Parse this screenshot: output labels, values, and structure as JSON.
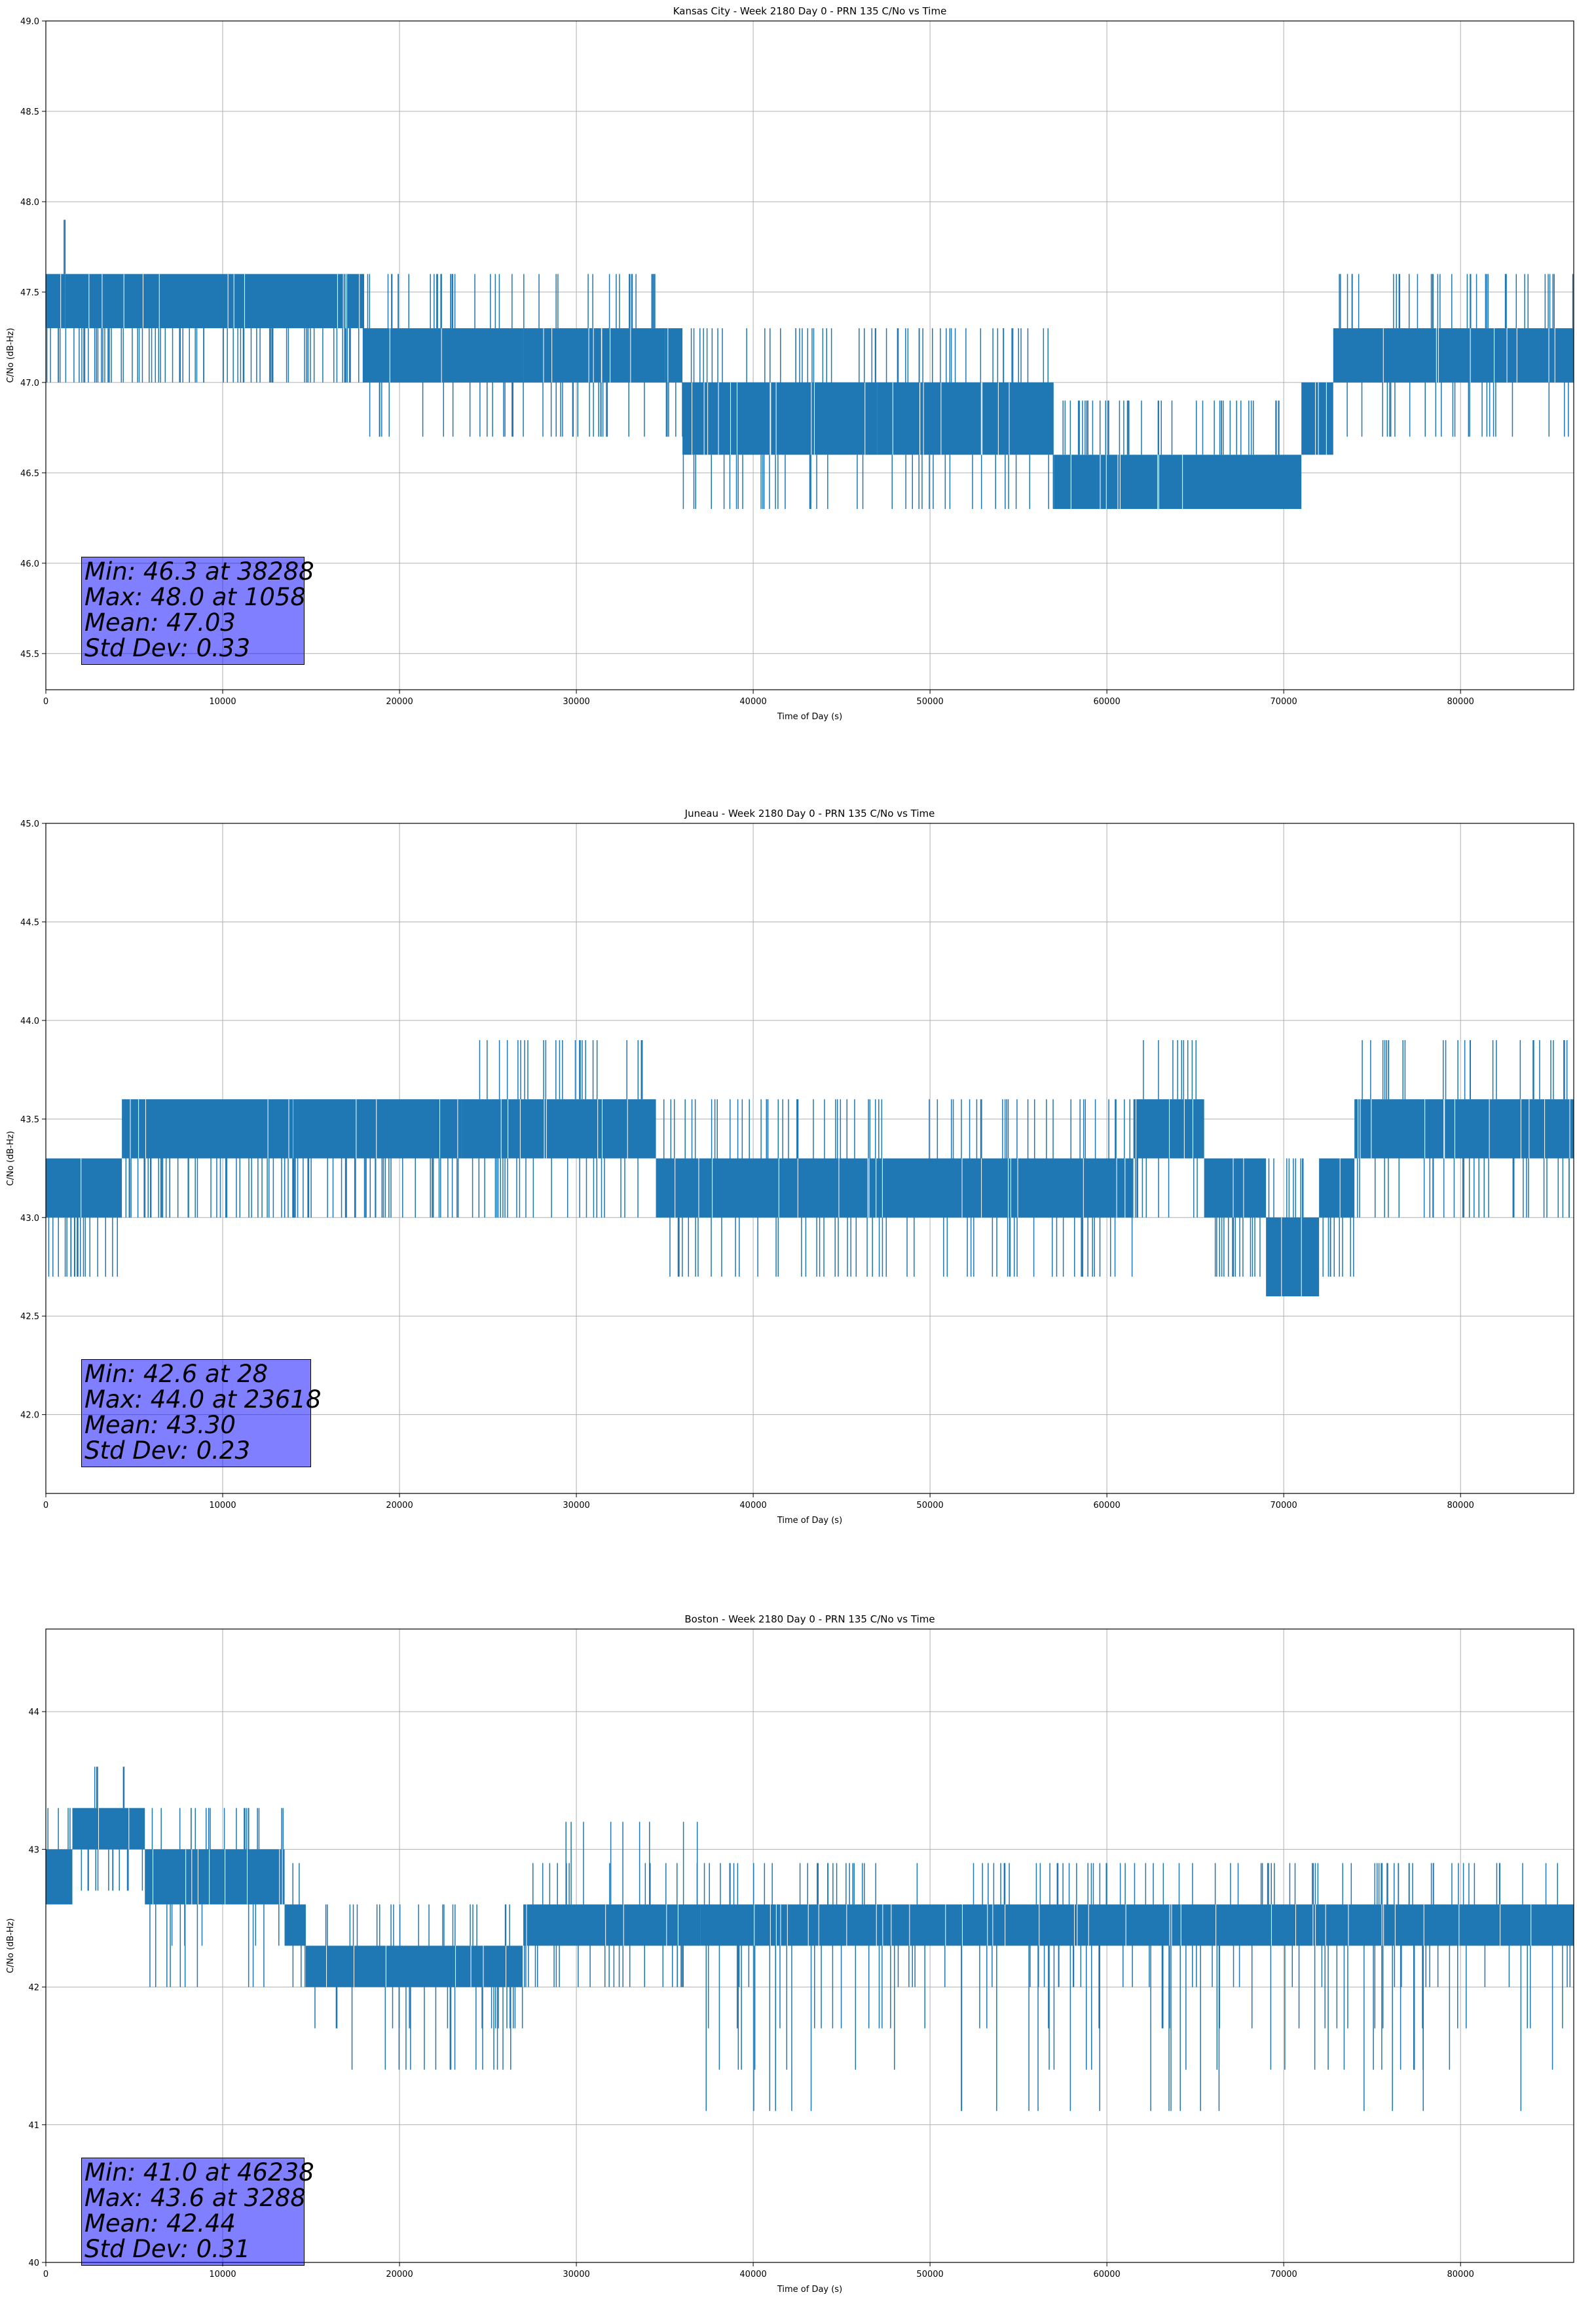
{
  "chart_data": [
    {
      "type": "line",
      "title": "Kansas City - Week 2180 Day 0 - PRN 135 C/No vs Time",
      "xlabel": "Time of Day (s)",
      "ylabel": "C/No (dB-Hz)",
      "xlim": [
        0,
        86400
      ],
      "ylim": [
        45.3,
        49.0
      ],
      "xticks": [
        0,
        10000,
        20000,
        30000,
        40000,
        50000,
        60000,
        70000,
        80000
      ],
      "yticks": [
        45.5,
        46.0,
        46.5,
        47.0,
        47.5,
        48.0,
        48.5,
        49.0
      ],
      "ytick_labels": [
        "45.5",
        "46.0",
        "46.5",
        "47.0",
        "47.5",
        "48.0",
        "48.5",
        "49.0"
      ],
      "grid": true,
      "color": "#1f77b4",
      "stats": [
        "Min: 46.3 at 38288",
        "Max: 48.0 at 1058",
        "Mean: 47.03",
        "Std Dev: 0.33"
      ],
      "segments": [
        {
          "x": [
            0,
            1000
          ],
          "y": [
            47.3,
            47.6
          ],
          "lo": 47.0,
          "hi": 47.6
        },
        {
          "x": [
            1000,
            1100
          ],
          "y": [
            47.3,
            47.6
          ],
          "lo": 47.0,
          "hi": 48.0
        },
        {
          "x": [
            1100,
            18000
          ],
          "y": [
            47.3,
            47.6
          ],
          "lo": 47.0,
          "hi": 47.6
        },
        {
          "x": [
            18000,
            27000
          ],
          "y": [
            47.0,
            47.3
          ],
          "lo": 46.6,
          "hi": 47.6
        },
        {
          "x": [
            27000,
            35000
          ],
          "y": [
            47.0,
            47.3
          ],
          "lo": 46.6,
          "hi": 47.6
        },
        {
          "x": [
            35000,
            36000
          ],
          "y": [
            47.0,
            47.3
          ],
          "lo": 46.6,
          "hi": 47.3
        },
        {
          "x": [
            36000,
            47000
          ],
          "y": [
            46.6,
            47.0
          ],
          "lo": 46.3,
          "hi": 47.3
        },
        {
          "x": [
            47000,
            57000
          ],
          "y": [
            46.6,
            47.0
          ],
          "lo": 46.3,
          "hi": 47.3
        },
        {
          "x": [
            57000,
            71000
          ],
          "y": [
            46.3,
            46.6
          ],
          "lo": 46.3,
          "hi": 47.0
        },
        {
          "x": [
            71000,
            72800
          ],
          "y": [
            46.6,
            47.0
          ],
          "lo": 46.6,
          "hi": 47.0
        },
        {
          "x": [
            72800,
            86400
          ],
          "y": [
            47.0,
            47.3
          ],
          "lo": 46.6,
          "hi": 47.6
        }
      ]
    },
    {
      "type": "line",
      "title": "Juneau - Week 2180 Day 0 - PRN 135 C/No vs Time",
      "xlabel": "Time of Day (s)",
      "ylabel": "C/No (dB-Hz)",
      "xlim": [
        0,
        86400
      ],
      "ylim": [
        41.6,
        45.0
      ],
      "xticks": [
        0,
        10000,
        20000,
        30000,
        40000,
        50000,
        60000,
        70000,
        80000
      ],
      "yticks": [
        42.0,
        42.5,
        43.0,
        43.5,
        44.0,
        44.5,
        45.0
      ],
      "ytick_labels": [
        "42.0",
        "42.5",
        "43.0",
        "43.5",
        "44.0",
        "44.5",
        "45.0"
      ],
      "grid": true,
      "color": "#1f77b4",
      "stats": [
        "Min: 42.6 at 28",
        "Max: 44.0 at 23618",
        "Mean: 43.30",
        "Std Dev: 0.23"
      ],
      "segments": [
        {
          "x": [
            0,
            4300
          ],
          "y": [
            43.0,
            43.3
          ],
          "lo": 42.6,
          "hi": 43.3
        },
        {
          "x": [
            4300,
            14000
          ],
          "y": [
            43.3,
            43.6
          ],
          "lo": 43.0,
          "hi": 43.6
        },
        {
          "x": [
            14000,
            23500
          ],
          "y": [
            43.3,
            43.6
          ],
          "lo": 43.0,
          "hi": 43.6
        },
        {
          "x": [
            23500,
            34500
          ],
          "y": [
            43.3,
            43.6
          ],
          "lo": 43.0,
          "hi": 44.0
        },
        {
          "x": [
            34500,
            61500
          ],
          "y": [
            43.0,
            43.3
          ],
          "lo": 42.6,
          "hi": 43.6
        },
        {
          "x": [
            61500,
            65500
          ],
          "y": [
            43.3,
            43.6
          ],
          "lo": 43.0,
          "hi": 44.0
        },
        {
          "x": [
            65500,
            69000
          ],
          "y": [
            43.0,
            43.3
          ],
          "lo": 42.6,
          "hi": 43.3
        },
        {
          "x": [
            69000,
            72000
          ],
          "y": [
            42.6,
            43.0
          ],
          "lo": 42.6,
          "hi": 43.3
        },
        {
          "x": [
            72000,
            74000
          ],
          "y": [
            43.0,
            43.3
          ],
          "lo": 42.6,
          "hi": 43.3
        },
        {
          "x": [
            74000,
            86400
          ],
          "y": [
            43.3,
            43.6
          ],
          "lo": 43.0,
          "hi": 44.0
        }
      ]
    },
    {
      "type": "line",
      "title": "Boston - Week 2180 Day 0 - PRN 135 C/No vs Time",
      "xlabel": "Time of Day (s)",
      "ylabel": "C/No (dB-Hz)",
      "xlim": [
        0,
        86400
      ],
      "ylim": [
        40.0,
        44.6
      ],
      "xticks": [
        0,
        10000,
        20000,
        30000,
        40000,
        50000,
        60000,
        70000,
        80000
      ],
      "yticks": [
        40,
        41,
        42,
        43,
        44
      ],
      "ytick_labels": [
        "40",
        "41",
        "42",
        "43",
        "44"
      ],
      "grid": true,
      "color": "#1f77b4",
      "stats": [
        "Min: 41.0 at 46238",
        "Max: 43.6 at 3288",
        "Mean: 42.44",
        "Std Dev: 0.31"
      ],
      "segments": [
        {
          "x": [
            0,
            1500
          ],
          "y": [
            42.6,
            43.0
          ],
          "lo": 42.6,
          "hi": 43.3
        },
        {
          "x": [
            1500,
            5600
          ],
          "y": [
            43.0,
            43.3
          ],
          "lo": 42.6,
          "hi": 43.6
        },
        {
          "x": [
            5600,
            13500
          ],
          "y": [
            42.6,
            43.0
          ],
          "lo": 42.0,
          "hi": 43.3
        },
        {
          "x": [
            13500,
            14700
          ],
          "y": [
            42.3,
            42.6
          ],
          "lo": 42.0,
          "hi": 43.0
        },
        {
          "x": [
            14700,
            27000
          ],
          "y": [
            42.0,
            42.3
          ],
          "lo": 41.3,
          "hi": 42.6
        },
        {
          "x": [
            27000,
            37000
          ],
          "y": [
            42.3,
            42.6
          ],
          "lo": 42.0,
          "hi": 43.3
        },
        {
          "x": [
            37000,
            86400
          ],
          "y": [
            42.3,
            42.6
          ],
          "lo": 41.0,
          "hi": 43.0
        }
      ]
    }
  ]
}
